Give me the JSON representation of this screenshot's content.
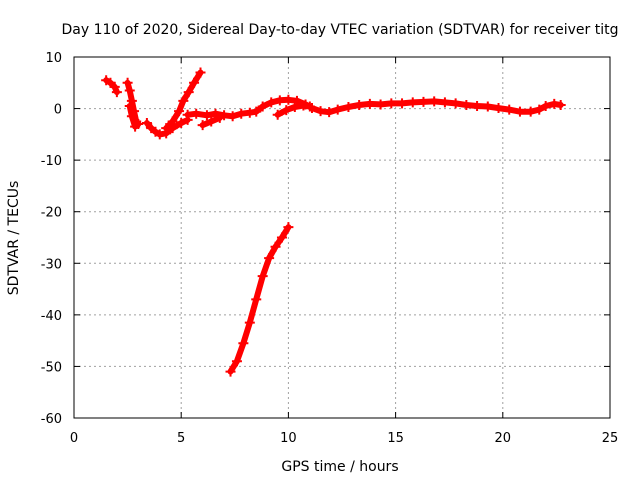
{
  "chart_data": {
    "type": "scatter",
    "title": "Day 110 of 2020, Sidereal Day-to-day VTEC variation (SDTVAR) for receiver titg",
    "xlabel": "GPS time / hours",
    "ylabel": "SDTVAR / TECUs",
    "xlim": [
      0,
      25
    ],
    "ylim": [
      -60,
      10
    ],
    "xticks": [
      0,
      5,
      10,
      15,
      20,
      25
    ],
    "yticks": [
      -60,
      -50,
      -40,
      -30,
      -20,
      -10,
      0,
      10
    ],
    "grid": true,
    "legend": "none",
    "color": "#ff0000",
    "series": [
      {
        "values": [
          {
            "x": 1.5,
            "y": 5.5
          },
          {
            "x": 1.7,
            "y": 5.0
          },
          {
            "x": 1.9,
            "y": 4.2
          },
          {
            "x": 2.0,
            "y": 3.2
          }
        ]
      },
      {
        "values": [
          {
            "x": 2.5,
            "y": 5.0
          },
          {
            "x": 2.6,
            "y": 3.5
          },
          {
            "x": 2.7,
            "y": 1.5
          },
          {
            "x": 2.8,
            "y": -0.5
          },
          {
            "x": 2.9,
            "y": -2.5
          },
          {
            "x": 3.0,
            "y": -3.0
          }
        ]
      },
      {
        "values": [
          {
            "x": 2.6,
            "y": 0.5
          },
          {
            "x": 2.7,
            "y": -1.5
          },
          {
            "x": 2.85,
            "y": -3.5
          }
        ]
      },
      {
        "values": [
          {
            "x": 3.4,
            "y": -2.8
          },
          {
            "x": 3.6,
            "y": -3.8
          },
          {
            "x": 3.8,
            "y": -4.5
          },
          {
            "x": 4.0,
            "y": -5.0
          },
          {
            "x": 4.3,
            "y": -4.8
          },
          {
            "x": 4.6,
            "y": -3.8
          },
          {
            "x": 5.0,
            "y": -2.8
          },
          {
            "x": 5.3,
            "y": -2.2
          }
        ]
      },
      {
        "values": [
          {
            "x": 4.3,
            "y": -3.8
          },
          {
            "x": 4.6,
            "y": -2.5
          },
          {
            "x": 4.9,
            "y": -0.5
          },
          {
            "x": 5.1,
            "y": 1.5
          },
          {
            "x": 5.35,
            "y": 3.2
          },
          {
            "x": 5.6,
            "y": 5.0
          },
          {
            "x": 5.9,
            "y": 7.0
          }
        ]
      },
      {
        "values": [
          {
            "x": 5.3,
            "y": -1.2
          },
          {
            "x": 5.7,
            "y": -1.0
          },
          {
            "x": 6.2,
            "y": -1.3
          },
          {
            "x": 6.6,
            "y": -1.0
          },
          {
            "x": 7.0,
            "y": -1.3
          },
          {
            "x": 7.4,
            "y": -1.5
          },
          {
            "x": 7.8,
            "y": -1.0
          },
          {
            "x": 8.2,
            "y": -0.8
          },
          {
            "x": 8.5,
            "y": -0.6
          },
          {
            "x": 8.8,
            "y": 0.4
          },
          {
            "x": 9.2,
            "y": 1.2
          },
          {
            "x": 9.6,
            "y": 1.6
          },
          {
            "x": 10.0,
            "y": 1.7
          },
          {
            "x": 10.4,
            "y": 1.5
          },
          {
            "x": 10.8,
            "y": 0.8
          },
          {
            "x": 11.1,
            "y": 0.1
          },
          {
            "x": 11.5,
            "y": -0.5
          },
          {
            "x": 11.9,
            "y": -0.7
          },
          {
            "x": 12.3,
            "y": -0.2
          },
          {
            "x": 12.8,
            "y": 0.3
          },
          {
            "x": 13.3,
            "y": 0.7
          },
          {
            "x": 13.8,
            "y": 0.9
          },
          {
            "x": 14.3,
            "y": 0.8
          },
          {
            "x": 14.8,
            "y": 1.0
          },
          {
            "x": 15.3,
            "y": 1.0
          },
          {
            "x": 15.8,
            "y": 1.2
          },
          {
            "x": 16.3,
            "y": 1.3
          },
          {
            "x": 16.8,
            "y": 1.4
          },
          {
            "x": 17.3,
            "y": 1.2
          },
          {
            "x": 17.8,
            "y": 1.0
          },
          {
            "x": 18.3,
            "y": 0.7
          },
          {
            "x": 18.8,
            "y": 0.5
          },
          {
            "x": 19.3,
            "y": 0.4
          },
          {
            "x": 19.8,
            "y": 0.1
          },
          {
            "x": 20.3,
            "y": -0.2
          },
          {
            "x": 20.8,
            "y": -0.6
          },
          {
            "x": 21.3,
            "y": -0.6
          },
          {
            "x": 21.7,
            "y": -0.2
          },
          {
            "x": 22.0,
            "y": 0.5
          },
          {
            "x": 22.4,
            "y": 0.9
          },
          {
            "x": 22.7,
            "y": 0.7
          }
        ]
      },
      {
        "values": [
          {
            "x": 6.0,
            "y": -3.2
          },
          {
            "x": 6.4,
            "y": -2.5
          },
          {
            "x": 6.8,
            "y": -1.8
          }
        ]
      },
      {
        "values": [
          {
            "x": 9.5,
            "y": -1.2
          },
          {
            "x": 9.9,
            "y": -0.3
          },
          {
            "x": 10.3,
            "y": 0.3
          },
          {
            "x": 10.7,
            "y": 0.6
          },
          {
            "x": 11.0,
            "y": 0.4
          }
        ]
      },
      {
        "values": [
          {
            "x": 7.3,
            "y": -51.0
          },
          {
            "x": 7.6,
            "y": -49.0
          },
          {
            "x": 7.9,
            "y": -45.5
          },
          {
            "x": 8.2,
            "y": -41.5
          },
          {
            "x": 8.5,
            "y": -37.0
          },
          {
            "x": 8.8,
            "y": -32.5
          },
          {
            "x": 9.1,
            "y": -29.0
          },
          {
            "x": 9.4,
            "y": -26.8
          },
          {
            "x": 9.7,
            "y": -25.0
          },
          {
            "x": 10.0,
            "y": -23.0
          }
        ]
      }
    ]
  }
}
